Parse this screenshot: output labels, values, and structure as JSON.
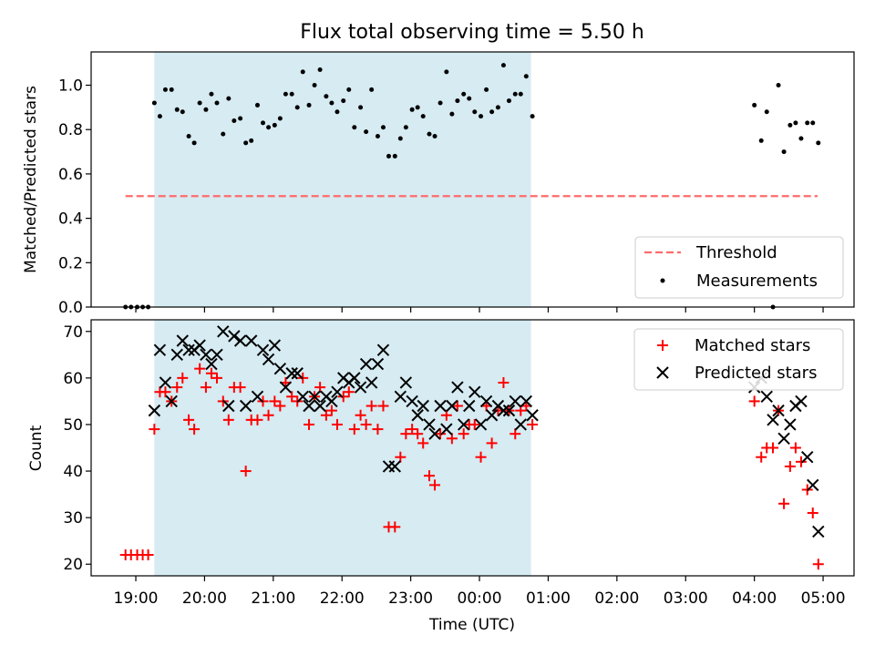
{
  "title": "Flux total observing time = 5.50 h",
  "xlabel": "Time (UTC)",
  "x_tick_labels": [
    "19:00",
    "20:00",
    "21:00",
    "22:00",
    "23:00",
    "00:00",
    "01:00",
    "02:00",
    "03:00",
    "04:00",
    "05:00"
  ],
  "colors": {
    "shade": "#add8e6",
    "threshold": "#ff6b6b",
    "measurements": "#000000",
    "matched": "#ff0000",
    "predicted": "#000000"
  },
  "chart_data": [
    {
      "type": "scatter",
      "panel": "top",
      "ylabel": "Matched/Predicted stars",
      "ylim": [
        0,
        1.15
      ],
      "yticks": [
        0.0,
        0.2,
        0.4,
        0.6,
        0.8,
        1.0
      ],
      "y_tick_labels": [
        "0.0",
        "0.2",
        "0.4",
        "0.6",
        "0.8",
        "1.0"
      ],
      "xlim_hours": [
        18.35,
        29.45
      ],
      "shaded_interval_hours": [
        19.27,
        24.75
      ],
      "legend_position": "lower-right",
      "threshold": {
        "name": "Threshold",
        "value": 0.5,
        "x_range_hours": [
          18.85,
          28.92
        ],
        "style": "dashed"
      },
      "series": [
        {
          "name": "Measurements",
          "marker": "dot",
          "x_hours": [
            18.85,
            18.93,
            19.02,
            19.1,
            19.18,
            19.27,
            19.35,
            19.43,
            19.52,
            19.6,
            19.68,
            19.77,
            19.85,
            19.93,
            20.02,
            20.1,
            20.18,
            20.27,
            20.35,
            20.43,
            20.52,
            20.6,
            20.68,
            20.77,
            20.85,
            20.93,
            21.02,
            21.1,
            21.18,
            21.27,
            21.35,
            21.43,
            21.52,
            21.6,
            21.68,
            21.77,
            21.85,
            21.93,
            22.02,
            22.1,
            22.18,
            22.27,
            22.35,
            22.43,
            22.52,
            22.6,
            22.68,
            22.77,
            22.85,
            22.93,
            23.02,
            23.1,
            23.18,
            23.27,
            23.35,
            23.43,
            23.52,
            23.6,
            23.68,
            23.77,
            23.85,
            23.93,
            24.02,
            24.1,
            24.18,
            24.27,
            24.35,
            24.43,
            24.52,
            24.6,
            24.68,
            24.77,
            28.0,
            28.1,
            28.18,
            28.27,
            28.35,
            28.43,
            28.52,
            28.6,
            28.68,
            28.77,
            28.85,
            28.93
          ],
          "y": [
            0.0,
            0.0,
            0.0,
            0.0,
            0.0,
            0.92,
            0.86,
            0.98,
            0.98,
            0.89,
            0.88,
            0.77,
            0.74,
            0.92,
            0.89,
            0.96,
            0.92,
            0.78,
            0.94,
            0.84,
            0.85,
            0.74,
            0.75,
            0.91,
            0.83,
            0.81,
            0.82,
            0.85,
            0.96,
            0.96,
            0.9,
            1.06,
            0.91,
            1.0,
            1.07,
            0.95,
            0.92,
            0.88,
            0.93,
            0.98,
            0.81,
            0.9,
            0.79,
            0.98,
            0.77,
            0.81,
            0.68,
            0.68,
            0.76,
            0.81,
            0.89,
            0.9,
            0.86,
            0.78,
            0.77,
            0.92,
            1.06,
            0.87,
            0.93,
            0.96,
            0.94,
            0.88,
            0.86,
            0.98,
            0.88,
            0.9,
            1.09,
            0.93,
            0.96,
            0.96,
            1.04,
            0.86,
            0.91,
            0.75,
            0.88,
            0.0,
            1.0,
            0.7,
            0.82,
            0.83,
            0.76,
            0.83,
            0.83,
            0.74
          ]
        }
      ]
    },
    {
      "type": "scatter",
      "panel": "bottom",
      "ylabel": "Count",
      "ylim": [
        17.5,
        72.5
      ],
      "yticks": [
        20,
        30,
        40,
        50,
        60,
        70
      ],
      "y_tick_labels": [
        "20",
        "30",
        "40",
        "50",
        "60",
        "70"
      ],
      "xlim_hours": [
        18.35,
        29.45
      ],
      "shaded_interval_hours": [
        19.27,
        24.75
      ],
      "legend_position": "upper-right",
      "series": [
        {
          "name": "Matched stars",
          "marker": "plus",
          "x_hours": [
            18.85,
            18.93,
            19.02,
            19.1,
            19.18,
            19.27,
            19.35,
            19.43,
            19.52,
            19.6,
            19.68,
            19.77,
            19.85,
            19.93,
            20.02,
            20.1,
            20.18,
            20.27,
            20.35,
            20.43,
            20.52,
            20.6,
            20.68,
            20.77,
            20.85,
            20.93,
            21.02,
            21.1,
            21.18,
            21.27,
            21.35,
            21.43,
            21.52,
            21.6,
            21.68,
            21.77,
            21.85,
            21.93,
            22.02,
            22.1,
            22.18,
            22.27,
            22.35,
            22.43,
            22.52,
            22.6,
            22.68,
            22.77,
            22.85,
            22.93,
            23.02,
            23.1,
            23.18,
            23.27,
            23.35,
            23.43,
            23.52,
            23.6,
            23.68,
            23.77,
            23.85,
            23.93,
            24.02,
            24.1,
            24.18,
            24.27,
            24.35,
            24.43,
            24.52,
            24.6,
            24.68,
            24.77,
            28.0,
            28.1,
            28.18,
            28.27,
            28.35,
            28.43,
            28.52,
            28.6,
            28.68,
            28.77,
            28.85,
            28.93
          ],
          "y": [
            22,
            22,
            22,
            22,
            22,
            49,
            57,
            57,
            55,
            58,
            60,
            51,
            49,
            62,
            58,
            61,
            60,
            55,
            51,
            58,
            58,
            40,
            51,
            51,
            55,
            52,
            55,
            54,
            59,
            56,
            55,
            60,
            50,
            56,
            58,
            52,
            53,
            50,
            56,
            57,
            49,
            52,
            50,
            54,
            49,
            54,
            28,
            28,
            43,
            48,
            49,
            48,
            46,
            39,
            37,
            48,
            52,
            47,
            54,
            48,
            50,
            50,
            43,
            54,
            46,
            53,
            59,
            53,
            48,
            53,
            54,
            50,
            55,
            43,
            45,
            45,
            53,
            33,
            41,
            45,
            42,
            36,
            31,
            20
          ]
        },
        {
          "name": "Predicted stars",
          "marker": "x",
          "x_hours": [
            19.27,
            19.35,
            19.43,
            19.52,
            19.6,
            19.68,
            19.77,
            19.85,
            19.93,
            20.02,
            20.1,
            20.18,
            20.27,
            20.35,
            20.43,
            20.52,
            20.6,
            20.68,
            20.77,
            20.85,
            20.93,
            21.02,
            21.1,
            21.18,
            21.27,
            21.35,
            21.43,
            21.52,
            21.6,
            21.68,
            21.77,
            21.85,
            21.93,
            22.02,
            22.1,
            22.18,
            22.27,
            22.35,
            22.43,
            22.52,
            22.6,
            22.68,
            22.77,
            22.85,
            22.93,
            23.02,
            23.1,
            23.18,
            23.27,
            23.35,
            23.43,
            23.52,
            23.6,
            23.68,
            23.77,
            23.85,
            23.93,
            24.02,
            24.1,
            24.18,
            24.27,
            24.35,
            24.43,
            24.52,
            24.6,
            24.68,
            24.77,
            28.0,
            28.1,
            28.18,
            28.27,
            28.35,
            28.43,
            28.52,
            28.6,
            28.68,
            28.77,
            28.85,
            28.93
          ],
          "y": [
            53,
            66,
            59,
            55,
            65,
            68,
            66,
            66,
            67,
            65,
            63,
            65,
            70,
            54,
            69,
            68,
            54,
            68,
            56,
            66,
            64,
            67,
            62,
            58,
            61,
            61,
            56,
            54,
            56,
            54,
            56,
            55,
            57,
            60,
            59,
            60,
            58,
            63,
            59,
            63,
            66,
            41,
            41,
            56,
            59,
            55,
            52,
            54,
            50,
            48,
            54,
            49,
            54,
            58,
            50,
            54,
            57,
            50,
            55,
            52,
            54,
            53,
            53,
            55,
            50,
            55,
            52,
            58,
            60,
            56,
            51,
            53,
            47,
            50,
            54,
            55,
            43,
            37,
            27
          ]
        }
      ]
    }
  ]
}
